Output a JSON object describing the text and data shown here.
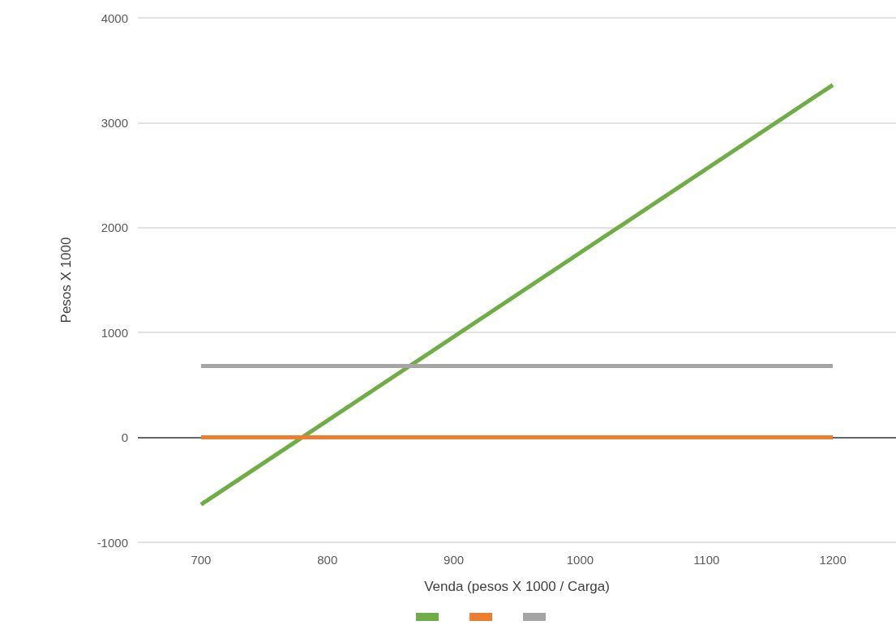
{
  "chart_data": {
    "type": "line",
    "xlabel": "Venda (pesos X 1000 / Carga)",
    "ylabel": "Pesos X 1000",
    "x": [
      700,
      1200
    ],
    "series": [
      {
        "color": "#70ad47",
        "values": [
          -640,
          3360
        ]
      },
      {
        "color": "#ed7d31",
        "values": [
          0,
          0
        ]
      },
      {
        "color": "#a5a5a5",
        "values": [
          680,
          680
        ]
      }
    ],
    "xlim": [
      650,
      1250
    ],
    "xticks": [
      700,
      800,
      900,
      1000,
      1100,
      1200
    ],
    "ylim": [
      -1000,
      4000
    ],
    "yticks": [
      -1000,
      0,
      1000,
      2000,
      3000,
      4000
    ],
    "grid": "y",
    "marker": "none",
    "line_style": "solid"
  }
}
